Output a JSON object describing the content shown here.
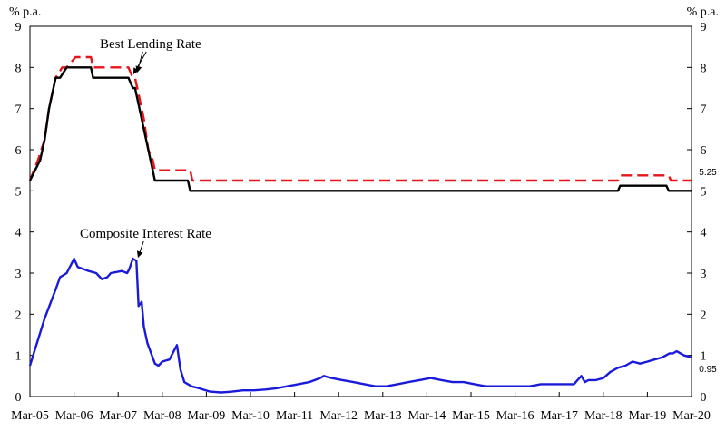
{
  "chart_data": {
    "type": "line",
    "title": "",
    "y_unit_left": "% p.a.",
    "y_unit_right": "% p.a.",
    "ylim": [
      0,
      9
    ],
    "yticks": [
      "0",
      "1",
      "2",
      "3",
      "4",
      "5",
      "6",
      "7",
      "8",
      "9"
    ],
    "xlim": [
      2005.167,
      2020.167
    ],
    "xticks": [
      {
        "label": "Mar-05",
        "x": 2005.167
      },
      {
        "label": "Mar-06",
        "x": 2006.167
      },
      {
        "label": "Mar-07",
        "x": 2007.167
      },
      {
        "label": "Mar-08",
        "x": 2008.167
      },
      {
        "label": "Mar-09",
        "x": 2009.167
      },
      {
        "label": "Mar-10",
        "x": 2010.167
      },
      {
        "label": "Mar-11",
        "x": 2011.167
      },
      {
        "label": "Mar-12",
        "x": 2012.167
      },
      {
        "label": "Mar-13",
        "x": 2013.167
      },
      {
        "label": "Mar-14",
        "x": 2014.167
      },
      {
        "label": "Mar-15",
        "x": 2015.167
      },
      {
        "label": "Mar-16",
        "x": 2016.167
      },
      {
        "label": "Mar-17",
        "x": 2017.167
      },
      {
        "label": "Mar-18",
        "x": 2018.167
      },
      {
        "label": "Mar-19",
        "x": 2019.167
      },
      {
        "label": "Mar-20",
        "x": 2020.167
      }
    ],
    "grid": false,
    "series": [
      {
        "color": "#e8141c",
        "dash": "dashed",
        "x": [
          2005.167,
          2005.35,
          2005.5,
          2005.6,
          2005.75,
          2005.9,
          2006.0,
          2006.2,
          2006.55,
          2006.6,
          2007.4,
          2007.5,
          2007.55,
          2007.65,
          2007.75,
          2007.85,
          2007.95,
          2008.0,
          2008.8,
          2008.85,
          2018.5,
          2018.55,
          2019.65,
          2019.7,
          2020.167
        ],
        "y": [
          5.25,
          5.75,
          6.25,
          7.0,
          7.75,
          8.0,
          8.0,
          8.25,
          8.25,
          8.0,
          8.0,
          7.75,
          7.75,
          7.25,
          6.75,
          6.0,
          5.75,
          5.5,
          5.5,
          5.25,
          5.25,
          5.375,
          5.375,
          5.25,
          5.25
        ]
      },
      {
        "color": "#000000",
        "dash": "solid",
        "x": [
          2005.167,
          2005.4,
          2005.5,
          2005.6,
          2005.75,
          2005.85,
          2006.0,
          2006.2,
          2006.55,
          2006.6,
          2007.4,
          2007.5,
          2007.55,
          2007.65,
          2007.75,
          2007.85,
          2007.95,
          2008.0,
          2008.75,
          2008.8,
          2018.5,
          2018.55,
          2019.6,
          2019.65,
          2020.167
        ],
        "y": [
          5.25,
          5.75,
          6.25,
          7.0,
          7.75,
          7.75,
          8.0,
          8.0,
          8.0,
          7.75,
          7.75,
          7.5,
          7.5,
          7.0,
          6.5,
          6.0,
          5.5,
          5.25,
          5.25,
          5.0,
          5.0,
          5.125,
          5.125,
          5.0,
          5.0
        ]
      },
      {
        "color": "#1a1adb",
        "dash": "solid",
        "x": [
          2005.167,
          2005.5,
          2005.75,
          2005.85,
          2006.0,
          2006.17,
          2006.25,
          2006.5,
          2006.67,
          2006.8,
          2006.92,
          2007.0,
          2007.25,
          2007.37,
          2007.42,
          2007.5,
          2007.58,
          2007.63,
          2007.7,
          2007.75,
          2007.83,
          2008.0,
          2008.08,
          2008.17,
          2008.33,
          2008.5,
          2008.58,
          2008.67,
          2008.83,
          2009.0,
          2009.25,
          2009.5,
          2009.75,
          2010.0,
          2010.25,
          2010.5,
          2010.75,
          2011.0,
          2011.25,
          2011.5,
          2011.75,
          2011.83,
          2012.0,
          2012.25,
          2012.5,
          2012.75,
          2013.0,
          2013.25,
          2013.5,
          2013.75,
          2014.0,
          2014.25,
          2014.5,
          2014.75,
          2015.0,
          2015.25,
          2015.5,
          2015.75,
          2016.0,
          2016.25,
          2016.5,
          2016.75,
          2017.0,
          2017.25,
          2017.5,
          2017.67,
          2017.75,
          2017.83,
          2018.0,
          2018.17,
          2018.33,
          2018.5,
          2018.67,
          2018.83,
          2019.0,
          2019.17,
          2019.33,
          2019.5,
          2019.67,
          2019.75,
          2019.83,
          2020.0,
          2020.167
        ],
        "y": [
          0.75,
          1.9,
          2.6,
          2.9,
          3.0,
          3.35,
          3.15,
          3.05,
          3.0,
          2.85,
          2.9,
          3.0,
          3.05,
          3.0,
          3.1,
          3.35,
          3.3,
          2.2,
          2.3,
          1.7,
          1.3,
          0.8,
          0.75,
          0.85,
          0.9,
          1.25,
          0.65,
          0.35,
          0.25,
          0.2,
          0.12,
          0.1,
          0.12,
          0.15,
          0.15,
          0.17,
          0.2,
          0.25,
          0.3,
          0.35,
          0.45,
          0.5,
          0.45,
          0.4,
          0.35,
          0.3,
          0.25,
          0.25,
          0.3,
          0.35,
          0.4,
          0.45,
          0.4,
          0.35,
          0.35,
          0.3,
          0.25,
          0.25,
          0.25,
          0.25,
          0.25,
          0.3,
          0.3,
          0.3,
          0.3,
          0.5,
          0.35,
          0.4,
          0.4,
          0.45,
          0.6,
          0.7,
          0.75,
          0.85,
          0.8,
          0.85,
          0.9,
          0.95,
          1.05,
          1.05,
          1.1,
          1.0,
          0.95
        ]
      }
    ],
    "annotations": [
      {
        "text": "Best Lending Rate",
        "arrow_to": [
          2007.6,
          7.8
        ]
      },
      {
        "text": "Composite Interest Rate",
        "arrow_to": [
          2007.62,
          3.3
        ]
      }
    ],
    "end_labels": [
      {
        "text": "5.25",
        "y": 5.25
      },
      {
        "text": "0.95",
        "y": 0.95
      }
    ]
  }
}
